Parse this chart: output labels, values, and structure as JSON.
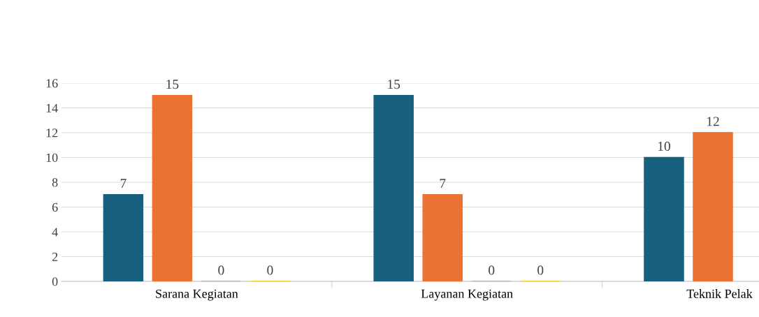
{
  "chart_data": {
    "type": "bar",
    "categories": [
      "Sarana Kegiatan",
      "Layanan Kegiatan",
      "Teknik Pelak"
    ],
    "series": [
      {
        "color": "#17607f",
        "values": [
          7,
          15,
          10
        ]
      },
      {
        "color": "#eb7232",
        "values": [
          15,
          7,
          12
        ]
      },
      {
        "color": "#a5a5a5",
        "values": [
          0,
          0,
          null
        ]
      },
      {
        "color": "#ffc000",
        "values": [
          0,
          0,
          null
        ]
      }
    ],
    "ylim": [
      0,
      16
    ],
    "yticks": [
      0,
      2,
      4,
      6,
      8,
      10,
      12,
      14,
      16
    ],
    "grid": "y",
    "legend": false,
    "data_labels": true
  }
}
